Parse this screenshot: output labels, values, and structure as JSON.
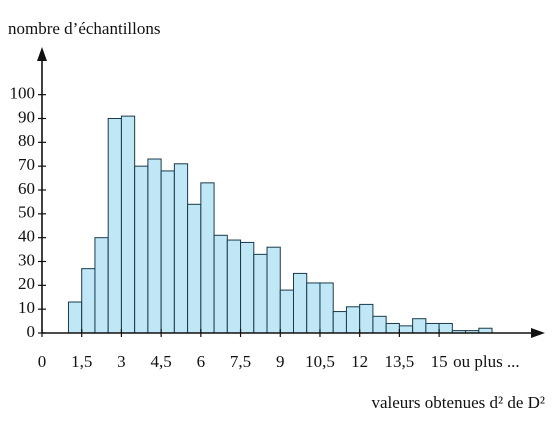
{
  "chart_data": {
    "type": "histogram",
    "y_label": "nombre d’échantillons",
    "x_label": "valeurs obtenues d² de D²",
    "annotation": "ou plus ...",
    "bins": [
      1,
      1.5,
      2,
      2.5,
      3,
      3.5,
      4,
      4.5,
      5,
      5.5,
      6,
      6.5,
      7,
      7.5,
      8,
      8.5,
      9,
      9.5,
      10,
      10.5,
      11,
      11.5,
      12,
      12.5,
      13,
      13.5,
      14,
      14.5,
      15,
      15.5,
      16,
      16.5,
      17
    ],
    "values": [
      13,
      27,
      40,
      90,
      91,
      70,
      73,
      68,
      71,
      54,
      63,
      41,
      39,
      38,
      33,
      36,
      18,
      25,
      21,
      21,
      9,
      11,
      12,
      7,
      4,
      3,
      6,
      4,
      4,
      1,
      1,
      2
    ],
    "color": "#bfe7f6",
    "xlim": [
      0,
      19
    ],
    "ylim": [
      0,
      120
    ],
    "xticks": [
      0,
      {
        "value": 1.5,
        "label": "1,5"
      },
      3,
      {
        "value": 4.5,
        "label": "4,5"
      },
      6,
      {
        "value": 7.5,
        "label": "7,5"
      },
      9,
      {
        "value": 10.5,
        "label": "10,5"
      },
      12,
      {
        "value": 13.5,
        "label": "13,5"
      },
      15
    ],
    "yticks": [
      0,
      10,
      20,
      30,
      40,
      50,
      60,
      70,
      80,
      90,
      100
    ],
    "grid": false
  }
}
